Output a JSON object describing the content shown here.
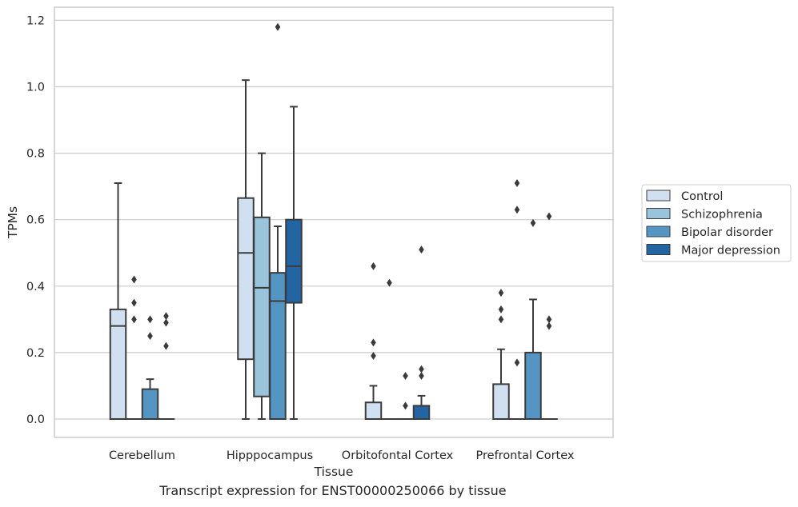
{
  "chart_data": {
    "type": "boxplot",
    "xlabel": "Tissue",
    "ylabel": "TPMs",
    "ylim": [
      -0.055,
      1.24
    ],
    "yticks": [
      0.0,
      0.2,
      0.4,
      0.6,
      0.8,
      1.0,
      1.2
    ],
    "ytick_labels": [
      "0.0",
      "0.2",
      "0.4",
      "0.6",
      "0.8",
      "1.0",
      "1.2"
    ],
    "grid": "horizontal",
    "legend_position": "right",
    "categories": [
      "Cerebellum",
      "Hipppocampus",
      "Orbitofontal Cortex",
      "Prefrontal Cortex"
    ],
    "series": [
      {
        "name": "Control",
        "color": "#d0e0f1",
        "boxes": [
          {
            "min": 0.0,
            "q1": 0.0,
            "median": 0.28,
            "q3": 0.33,
            "max": 0.71,
            "outliers": []
          },
          {
            "min": 0.0,
            "q1": 0.18,
            "median": 0.5,
            "q3": 0.665,
            "max": 1.02,
            "outliers": []
          },
          {
            "min": 0.0,
            "q1": 0.0,
            "median": 0.0,
            "q3": 0.05,
            "max": 0.1,
            "outliers": [
              0.19,
              0.23,
              0.46
            ]
          },
          {
            "min": 0.0,
            "q1": 0.0,
            "median": 0.0,
            "q3": 0.105,
            "max": 0.21,
            "outliers": [
              0.3,
              0.33,
              0.38
            ]
          }
        ]
      },
      {
        "name": "Schizophrenia",
        "color": "#9ac3dc",
        "boxes": [
          {
            "min": 0.0,
            "q1": 0.0,
            "median": 0.0,
            "q3": 0.0,
            "max": 0.0,
            "outliers": [
              0.3,
              0.35,
              0.42
            ]
          },
          {
            "min": 0.0,
            "q1": 0.068,
            "median": 0.395,
            "q3": 0.607,
            "max": 0.8,
            "outliers": []
          },
          {
            "min": 0.0,
            "q1": 0.0,
            "median": 0.0,
            "q3": 0.0,
            "max": 0.0,
            "outliers": [
              0.41
            ]
          },
          {
            "min": 0.0,
            "q1": 0.0,
            "median": 0.0,
            "q3": 0.0,
            "max": 0.0,
            "outliers": [
              0.17,
              0.63,
              0.71
            ]
          }
        ]
      },
      {
        "name": "Bipolar disorder",
        "color": "#5495c4",
        "boxes": [
          {
            "min": 0.0,
            "q1": 0.0,
            "median": 0.0,
            "q3": 0.09,
            "max": 0.12,
            "outliers": [
              0.25,
              0.3
            ]
          },
          {
            "min": 0.0,
            "q1": 0.0,
            "median": 0.355,
            "q3": 0.44,
            "max": 0.58,
            "outliers": [
              1.18
            ]
          },
          {
            "min": 0.0,
            "q1": 0.0,
            "median": 0.0,
            "q3": 0.0,
            "max": 0.0,
            "outliers": [
              0.04,
              0.13
            ]
          },
          {
            "min": 0.0,
            "q1": 0.0,
            "median": 0.0,
            "q3": 0.2,
            "max": 0.36,
            "outliers": [
              0.59
            ]
          }
        ]
      },
      {
        "name": "Major depression",
        "color": "#2365a3",
        "boxes": [
          {
            "min": 0.0,
            "q1": 0.0,
            "median": 0.0,
            "q3": 0.0,
            "max": 0.0,
            "outliers": [
              0.22,
              0.29,
              0.31
            ]
          },
          {
            "min": 0.0,
            "q1": 0.35,
            "median": 0.46,
            "q3": 0.6,
            "max": 0.94,
            "outliers": []
          },
          {
            "min": 0.0,
            "q1": 0.0,
            "median": 0.0,
            "q3": 0.04,
            "max": 0.07,
            "outliers": [
              0.13,
              0.15,
              0.51
            ]
          },
          {
            "min": 0.0,
            "q1": 0.0,
            "median": 0.0,
            "q3": 0.0,
            "max": 0.0,
            "outliers": [
              0.28,
              0.3,
              0.61
            ]
          }
        ]
      }
    ],
    "colors": {
      "grid": "#cccccc",
      "axis_frame": "#cccccc",
      "line": "#3b3b3b",
      "text": "#262626"
    }
  },
  "caption": "Transcript expression for ENST00000250066 by tissue"
}
